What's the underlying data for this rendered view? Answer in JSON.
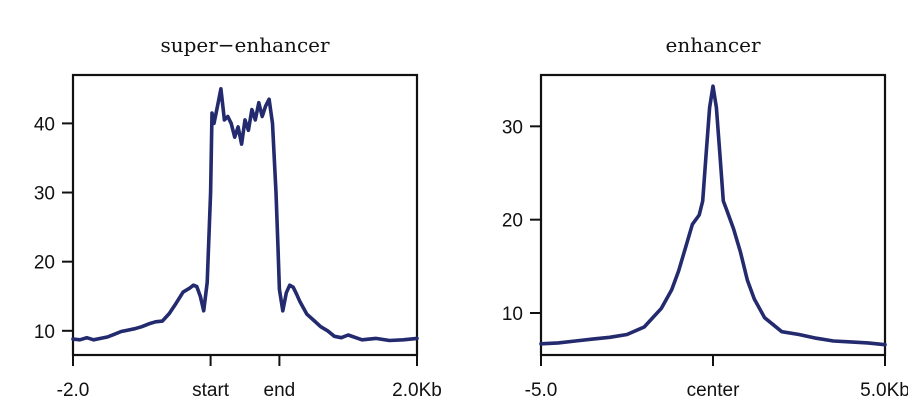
{
  "chart_data": [
    {
      "type": "line",
      "title": "super−enhancer",
      "xlabel": "",
      "ylabel": "",
      "xlim": [
        -2.0,
        3.0
      ],
      "ylim": [
        6.5,
        47
      ],
      "xticks": [
        {
          "value": -2.0,
          "label": "-2.0"
        },
        {
          "value": 0.0,
          "label": "start"
        },
        {
          "value": 1.0,
          "label": "end"
        },
        {
          "value": 3.0,
          "label": "2.0Kb"
        }
      ],
      "yticks": [
        {
          "value": 10,
          "label": "10"
        },
        {
          "value": 20,
          "label": "20"
        },
        {
          "value": 30,
          "label": "30"
        },
        {
          "value": 40,
          "label": "40"
        }
      ],
      "series": [
        {
          "color": "#232a6e",
          "x": [
            -2.0,
            -1.9,
            -1.8,
            -1.7,
            -1.6,
            -1.5,
            -1.4,
            -1.3,
            -1.2,
            -1.1,
            -1.0,
            -0.9,
            -0.8,
            -0.7,
            -0.6,
            -0.5,
            -0.4,
            -0.3,
            -0.25,
            -0.2,
            -0.15,
            -0.1,
            -0.05,
            0.0,
            0.02,
            0.05,
            0.1,
            0.15,
            0.2,
            0.25,
            0.3,
            0.35,
            0.4,
            0.45,
            0.5,
            0.55,
            0.6,
            0.65,
            0.7,
            0.75,
            0.8,
            0.85,
            0.9,
            0.95,
            0.98,
            1.0,
            1.05,
            1.1,
            1.15,
            1.2,
            1.25,
            1.3,
            1.4,
            1.5,
            1.6,
            1.7,
            1.8,
            1.9,
            2.0,
            2.2,
            2.4,
            2.6,
            2.8,
            3.0
          ],
          "values": [
            8.8,
            8.7,
            9.0,
            8.7,
            8.9,
            9.1,
            9.5,
            9.9,
            10.1,
            10.3,
            10.6,
            11.0,
            11.3,
            11.4,
            12.5,
            14.0,
            15.6,
            16.2,
            16.6,
            16.4,
            15.0,
            12.9,
            17.0,
            30.0,
            41.5,
            40.0,
            42.5,
            45.0,
            40.5,
            41.0,
            40.0,
            38.0,
            39.5,
            37.0,
            40.5,
            39.0,
            42.0,
            40.5,
            43.0,
            41.0,
            42.5,
            43.5,
            40.0,
            30.0,
            22.0,
            16.0,
            12.9,
            15.5,
            16.6,
            16.3,
            15.3,
            14.2,
            12.4,
            11.5,
            10.6,
            10.0,
            9.2,
            9.0,
            9.4,
            8.7,
            8.9,
            8.6,
            8.7,
            8.9
          ]
        }
      ]
    },
    {
      "type": "line",
      "title": "enhancer",
      "xlabel": "",
      "ylabel": "",
      "xlim": [
        -5.0,
        5.0
      ],
      "ylim": [
        5.5,
        35.5
      ],
      "xticks": [
        {
          "value": -5.0,
          "label": "-5.0"
        },
        {
          "value": 0.0,
          "label": "center"
        },
        {
          "value": 5.0,
          "label": "5.0Kb"
        }
      ],
      "yticks": [
        {
          "value": 10,
          "label": "10"
        },
        {
          "value": 20,
          "label": "20"
        },
        {
          "value": 30,
          "label": "30"
        }
      ],
      "series": [
        {
          "color": "#232a6e",
          "x": [
            -5.0,
            -4.5,
            -4.0,
            -3.5,
            -3.0,
            -2.5,
            -2.0,
            -1.5,
            -1.2,
            -1.0,
            -0.8,
            -0.6,
            -0.4,
            -0.3,
            -0.2,
            -0.1,
            0.0,
            0.1,
            0.2,
            0.3,
            0.4,
            0.6,
            0.8,
            1.0,
            1.2,
            1.5,
            2.0,
            2.5,
            3.0,
            3.5,
            4.0,
            4.5,
            5.0
          ],
          "values": [
            6.7,
            6.8,
            7.0,
            7.2,
            7.4,
            7.7,
            8.5,
            10.5,
            12.5,
            14.5,
            17.0,
            19.5,
            20.5,
            22.0,
            27.0,
            32.0,
            34.3,
            32.0,
            27.0,
            22.0,
            21.0,
            19.0,
            16.5,
            13.5,
            11.5,
            9.5,
            8.0,
            7.7,
            7.3,
            7.0,
            6.9,
            6.8,
            6.6
          ]
        }
      ]
    }
  ]
}
